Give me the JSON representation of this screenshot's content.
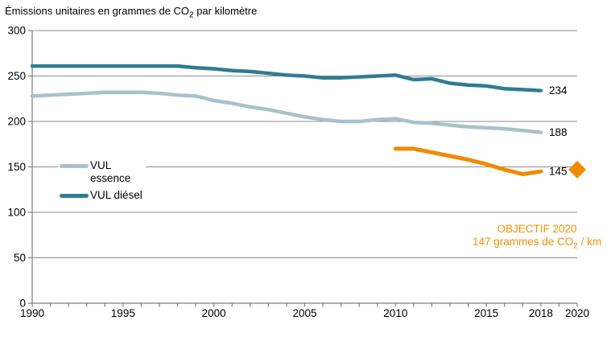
{
  "title": {
    "pre": "Émissions unitaires en grammes de CO",
    "sub": "2",
    "post": " par kilomètre"
  },
  "legend": {
    "items": [
      {
        "id": "vul-essence",
        "lines": [
          "VUL",
          "essence"
        ],
        "color": "#A9C1CB"
      },
      {
        "id": "vul-diesel",
        "lines": [
          "VUL diésel"
        ],
        "color": "#2E7D90"
      }
    ]
  },
  "objective": {
    "line1": "OBJECTIF 2020",
    "line2_pre": "147 grammes de CO",
    "line2_sub": "2",
    "line2_post": " / km",
    "color": "#F39200"
  },
  "chart_data": {
    "type": "line",
    "title": "Émissions unitaires en grammes de CO₂ par kilomètre",
    "xlabel": "",
    "ylabel": "grammes de CO₂ / km",
    "xlim": [
      1990,
      2020
    ],
    "ylim": [
      0,
      300
    ],
    "yticks": [
      0,
      50,
      100,
      150,
      200,
      250,
      300
    ],
    "xticks_labeled": [
      1990,
      1995,
      2000,
      2005,
      2010,
      2015,
      2018,
      2020
    ],
    "xticks_minor_step": 1,
    "grid": "horizontal",
    "legend_position": "middle-left",
    "grid_color": "#8E8E8E",
    "axis_color": "#7F7F7F",
    "series": [
      {
        "name": "VUL essence",
        "color": "#A9C1CB",
        "end_label": "188",
        "x": [
          1990,
          1991,
          1992,
          1993,
          1994,
          1995,
          1996,
          1997,
          1998,
          1999,
          2000,
          2001,
          2002,
          2003,
          2004,
          2005,
          2006,
          2007,
          2008,
          2009,
          2010,
          2011,
          2012,
          2013,
          2014,
          2015,
          2016,
          2017,
          2018
        ],
        "values": [
          228,
          229,
          230,
          231,
          232,
          232,
          232,
          231,
          229,
          228,
          223,
          220,
          216,
          213,
          209,
          205,
          202,
          200,
          200,
          202,
          203,
          199,
          198,
          196,
          194,
          193,
          192,
          190,
          188
        ]
      },
      {
        "name": "VUL diésel",
        "color": "#2E7D90",
        "end_label": "234",
        "x": [
          1990,
          1991,
          1992,
          1993,
          1994,
          1995,
          1996,
          1997,
          1998,
          1999,
          2000,
          2001,
          2002,
          2003,
          2004,
          2005,
          2006,
          2007,
          2008,
          2009,
          2010,
          2011,
          2012,
          2013,
          2014,
          2015,
          2016,
          2017,
          2018
        ],
        "values": [
          261,
          261,
          261,
          261,
          261,
          261,
          261,
          261,
          261,
          259,
          258,
          256,
          255,
          253,
          251,
          250,
          248,
          248,
          249,
          250,
          251,
          246,
          247,
          242,
          240,
          239,
          236,
          235,
          234
        ]
      },
      {
        "name": "Objectif 2020",
        "color": "#F08A00",
        "end_label": "145",
        "x": [
          2010,
          2011,
          2012,
          2013,
          2014,
          2015,
          2016,
          2017,
          2018
        ],
        "values": [
          170,
          170,
          166,
          162,
          158,
          153,
          147,
          142,
          145
        ]
      }
    ],
    "objective_marker": {
      "x": 2020,
      "value": 147,
      "shape": "diamond",
      "color": "#F08A00"
    }
  }
}
